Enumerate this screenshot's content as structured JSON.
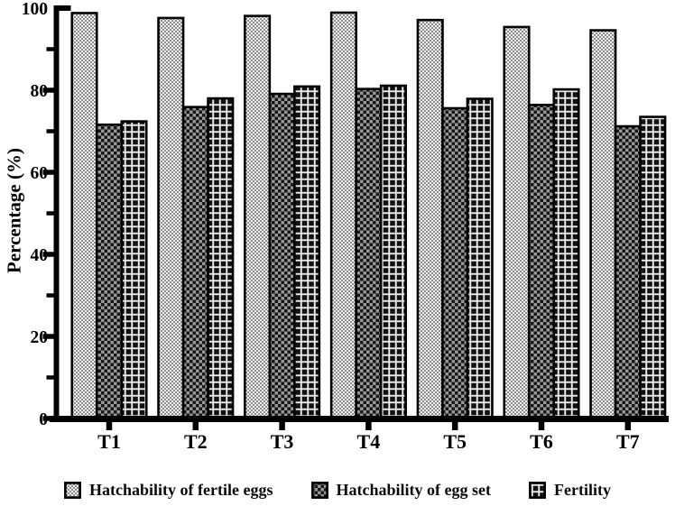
{
  "figure": {
    "background": "#ffffff",
    "axis_color": "#000000",
    "bar_border_color": "#000000"
  },
  "chart_data": {
    "type": "bar",
    "title": "",
    "xlabel": "",
    "ylabel": "Percentage (%)",
    "ylim": [
      0,
      100
    ],
    "yticks_major": [
      0,
      20,
      40,
      60,
      80,
      100
    ],
    "yticks_minor": [
      10,
      30,
      50,
      70,
      90
    ],
    "grid": false,
    "legend_position": "bottom",
    "categories": [
      "T1",
      "T2",
      "T3",
      "T4",
      "T5",
      "T6",
      "T7"
    ],
    "series": [
      {
        "name": "Hatchability of fertile eggs",
        "pattern": "light-checkerboard",
        "values": [
          98.8,
          97.6,
          98.1,
          98.9,
          97.1,
          95.4,
          94.6
        ]
      },
      {
        "name": "Hatchability of egg set",
        "pattern": "dark-checkerboard",
        "values": [
          71.6,
          75.9,
          79.1,
          80.3,
          75.6,
          76.4,
          71.2
        ]
      },
      {
        "name": "Fertility",
        "pattern": "grid-crosshatch",
        "values": [
          72.4,
          78.0,
          80.9,
          81.1,
          77.9,
          80.2,
          73.5
        ]
      }
    ]
  }
}
